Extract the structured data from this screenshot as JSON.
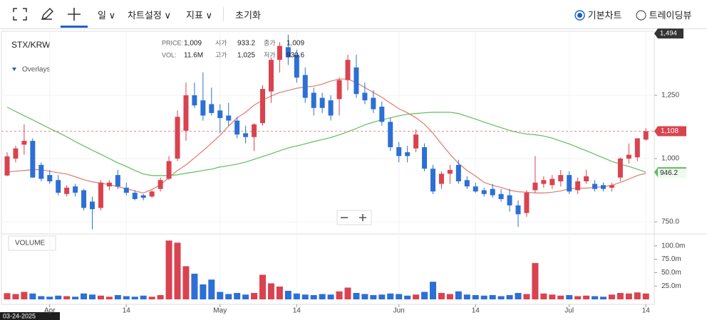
{
  "toolbar": {
    "items": [
      "일",
      "차트설정",
      "지표",
      "초기화"
    ],
    "views": [
      "기본차트",
      "트레이딩뷰"
    ]
  },
  "chart_data": {
    "type": "candlestick",
    "title": "STX/KRW",
    "overlays_label": "Overlays",
    "tooltip": [
      {
        "label": "PRICE:",
        "value": "1,009"
      },
      {
        "label": "시가",
        "value": "933.2"
      },
      {
        "label": "종가",
        "value": "1,009"
      },
      {
        "label": "VOL:",
        "value": "11.6M"
      },
      {
        "label": "고가",
        "value": "1,025"
      },
      {
        "label": "저가",
        "value": "930.6"
      }
    ],
    "categories": [
      "03-24-2025",
      null,
      null,
      null,
      null,
      "Apr",
      null,
      null,
      null,
      null,
      null,
      null,
      null,
      null,
      "14",
      null,
      null,
      null,
      null,
      null,
      null,
      null,
      null,
      null,
      null,
      "May",
      null,
      null,
      null,
      null,
      null,
      null,
      null,
      null,
      "14",
      null,
      null,
      null,
      null,
      null,
      null,
      null,
      null,
      null,
      null,
      null,
      "Jun",
      null,
      null,
      null,
      null,
      null,
      null,
      null,
      null,
      "14",
      null,
      null,
      null,
      null,
      null,
      null,
      null,
      null,
      null,
      null,
      "Jul",
      null,
      null,
      null,
      null,
      null,
      null,
      null,
      null,
      "14"
    ],
    "open": [
      933.2,
      1000,
      1055,
      1070,
      975,
      935,
      915,
      860,
      890,
      875,
      830,
      805,
      890,
      935,
      885,
      865,
      855,
      850,
      880,
      920,
      1000,
      1110,
      1250,
      1230,
      1215,
      1190,
      1170,
      1150,
      1100,
      1085,
      1140,
      1265,
      1390,
      1440,
      1410,
      1330,
      1260,
      1240,
      1230,
      1235,
      1310,
      1360,
      1260,
      1240,
      1205,
      1145,
      1045,
      1025,
      1040,
      1045,
      960,
      900,
      940,
      975,
      915,
      890,
      875,
      880,
      860,
      855,
      815,
      785,
      875,
      900,
      895,
      910,
      935,
      875,
      910,
      900,
      895,
      885,
      925,
      1000,
      1005,
      1075
    ],
    "high": [
      1025,
      1050,
      1135,
      1080,
      985,
      955,
      935,
      895,
      900,
      880,
      850,
      915,
      915,
      955,
      905,
      875,
      860,
      875,
      925,
      1010,
      1190,
      1300,
      1300,
      1340,
      1280,
      1215,
      1220,
      1165,
      1130,
      1140,
      1290,
      1400,
      1460,
      1490,
      1430,
      1360,
      1280,
      1260,
      1250,
      1320,
      1410,
      1410,
      1300,
      1270,
      1225,
      1160,
      1065,
      1050,
      1115,
      1060,
      975,
      950,
      975,
      995,
      930,
      905,
      885,
      900,
      880,
      880,
      835,
      875,
      1010,
      930,
      935,
      955,
      950,
      925,
      955,
      915,
      905,
      905,
      1005,
      1060,
      1080,
      1120
    ],
    "low": [
      930.6,
      985,
      1015,
      925,
      910,
      900,
      855,
      850,
      850,
      795,
      720,
      795,
      875,
      880,
      855,
      835,
      835,
      845,
      870,
      915,
      990,
      1070,
      1200,
      1150,
      1170,
      1100,
      1130,
      1080,
      1060,
      1030,
      1130,
      1220,
      1340,
      1370,
      1300,
      1220,
      1170,
      1180,
      1150,
      1170,
      1270,
      1240,
      1215,
      1180,
      1130,
      1030,
      985,
      985,
      1025,
      950,
      860,
      880,
      900,
      900,
      880,
      865,
      850,
      845,
      830,
      790,
      730,
      770,
      865,
      885,
      880,
      890,
      860,
      860,
      900,
      870,
      870,
      870,
      910,
      980,
      990,
      1070
    ],
    "close": [
      1009,
      1040,
      1070,
      925,
      920,
      910,
      865,
      885,
      865,
      805,
      800,
      905,
      905,
      890,
      865,
      840,
      845,
      870,
      915,
      990,
      1165,
      1250,
      1210,
      1170,
      1180,
      1160,
      1150,
      1095,
      1085,
      1135,
      1275,
      1390,
      1445,
      1400,
      1320,
      1240,
      1200,
      1200,
      1170,
      1310,
      1390,
      1255,
      1230,
      1195,
      1145,
      1045,
      1010,
      1010,
      1095,
      960,
      870,
      940,
      955,
      910,
      890,
      870,
      860,
      855,
      840,
      815,
      780,
      865,
      905,
      915,
      920,
      935,
      870,
      910,
      930,
      880,
      880,
      895,
      1000,
      1015,
      1080,
      1108
    ],
    "up_color": "#d9434f",
    "down_color": "#2d6fd4",
    "ylim": [
      705,
      1500
    ],
    "yticks": [
      {
        "value": 750,
        "label": "750.0"
      },
      {
        "value": 1000,
        "label": "1,000"
      },
      {
        "value": 1250,
        "label": "1,250"
      }
    ],
    "high_marker": {
      "value": 1494,
      "label": "1,494"
    },
    "last_price": {
      "value": 1108,
      "label": "1,108"
    },
    "moving_averages": [
      {
        "color": "#e07a6e",
        "end_label": false,
        "values": [
          947,
          950,
          953,
          956,
          956,
          950,
          944,
          939,
          928,
          917,
          908,
          903,
          897,
          889,
          881,
          872,
          864,
          878,
          897,
          925,
          953,
          975,
          1003,
          1031,
          1061,
          1092,
          1128,
          1161,
          1183,
          1211,
          1231,
          1247,
          1261,
          1269,
          1278,
          1283,
          1286,
          1294,
          1306,
          1314,
          1314,
          1300,
          1281,
          1261,
          1242,
          1219,
          1197,
          1181,
          1161,
          1136,
          1100,
          1058,
          1017,
          981,
          953,
          931,
          906,
          894,
          886,
          875,
          869,
          867,
          864,
          864,
          867,
          872,
          881,
          883,
          883,
          886,
          889,
          894,
          906,
          919,
          933,
          942
        ]
      },
      {
        "color": "#5cbf5a",
        "end_label": true,
        "values": [
          1203,
          1186,
          1169,
          1153,
          1136,
          1119,
          1103,
          1086,
          1067,
          1050,
          1033,
          1017,
          1000,
          983,
          969,
          953,
          939,
          933,
          933,
          933,
          936,
          942,
          947,
          953,
          958,
          967,
          972,
          978,
          986,
          997,
          1008,
          1019,
          1031,
          1042,
          1050,
          1058,
          1067,
          1075,
          1083,
          1094,
          1106,
          1119,
          1133,
          1144,
          1153,
          1161,
          1169,
          1175,
          1178,
          1181,
          1183,
          1183,
          1183,
          1178,
          1167,
          1156,
          1144,
          1133,
          1122,
          1111,
          1103,
          1097,
          1094,
          1089,
          1081,
          1069,
          1058,
          1044,
          1031,
          1017,
          1003,
          989,
          978,
          969,
          958,
          946.2
        ]
      }
    ],
    "volume": {
      "title": "VOLUME",
      "values": [
        11.6,
        10,
        14,
        11,
        6,
        5,
        7,
        6,
        5,
        11,
        9,
        7,
        5,
        8,
        6,
        5,
        7,
        5,
        8,
        110,
        106,
        62,
        48,
        28,
        37,
        14,
        10,
        12,
        9,
        12,
        46,
        30,
        24,
        16,
        11,
        9,
        8,
        10,
        9,
        15,
        22,
        12,
        10,
        8,
        9,
        11,
        10,
        7,
        9,
        14,
        33,
        12,
        10,
        15,
        9,
        8,
        7,
        8,
        6,
        8,
        12,
        10,
        68,
        11,
        9,
        7,
        8,
        6,
        7,
        6,
        5,
        9,
        12,
        11,
        13,
        11
      ],
      "ylim": [
        0,
        117
      ],
      "yticks": [
        {
          "value": 25,
          "label": "25.0m"
        },
        {
          "value": 50,
          "label": "50.0m"
        },
        {
          "value": 75,
          "label": "75.0m"
        },
        {
          "value": 100,
          "label": "100.0m"
        }
      ]
    }
  }
}
